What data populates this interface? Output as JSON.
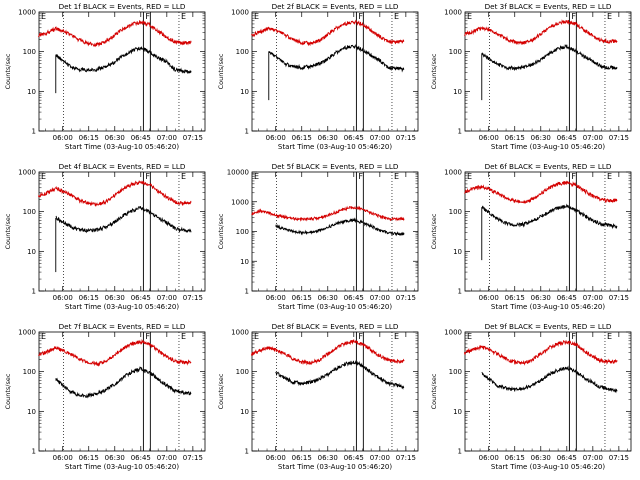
{
  "colors": {
    "events": "#000000",
    "lld": "#d40000",
    "axis": "#000000"
  },
  "chart_data": [
    {
      "type": "line",
      "title": "Det 1f BLACK = Events, RED = LLD",
      "xlabel": "Start Time (03-Aug-10 05:46:20)",
      "ylabel": "Counts/sec",
      "ylog": true,
      "ylim": [
        1,
        1000
      ],
      "yticks": [
        "1",
        "10",
        "100",
        "1000"
      ],
      "x_tick_labels": [
        "06:00",
        "06:15",
        "06:30",
        "06:45",
        "07:00",
        "07:15"
      ],
      "markers": [
        {
          "label": "F",
          "type": "solid"
        },
        {
          "label": "E",
          "type": "dotted"
        }
      ],
      "series": [
        {
          "name": "Events",
          "color": "#000000"
        },
        {
          "name": "LLD",
          "color": "#d40000"
        }
      ],
      "x": [
        "05:46",
        "05:51",
        "05:56",
        "06:00",
        "06:05",
        "06:10",
        "06:15",
        "06:20",
        "06:25",
        "06:30",
        "06:35",
        "06:40",
        "06:45",
        "06:50",
        "06:55",
        "07:00",
        "07:05",
        "07:10",
        "07:14"
      ],
      "events": [
        null,
        null,
        80,
        60,
        40,
        35,
        34,
        36,
        42,
        55,
        80,
        105,
        125,
        100,
        70,
        55,
        35,
        32,
        30
      ],
      "lld": [
        250,
        300,
        380,
        330,
        260,
        190,
        160,
        150,
        180,
        260,
        380,
        490,
        560,
        480,
        330,
        230,
        175,
        165,
        170
      ]
    },
    {
      "type": "line",
      "title": "Det 2f BLACK = Events, RED = LLD",
      "xlabel": "Start Time (03-Aug-10 05:46:20)",
      "ylabel": "Counts/sec",
      "ylog": true,
      "ylim": [
        1,
        1000
      ],
      "yticks": [
        "1",
        "10",
        "100",
        "1000"
      ],
      "x_tick_labels": [
        "06:00",
        "06:15",
        "06:30",
        "06:45",
        "07:00",
        "07:15"
      ],
      "markers": [
        {
          "label": "F",
          "type": "solid"
        },
        {
          "label": "E",
          "type": "dotted"
        }
      ],
      "series": [
        {
          "name": "Events",
          "color": "#000000"
        },
        {
          "name": "LLD",
          "color": "#d40000"
        }
      ],
      "x": [
        "05:46",
        "05:51",
        "05:56",
        "06:00",
        "06:05",
        "06:10",
        "06:15",
        "06:20",
        "06:25",
        "06:30",
        "06:35",
        "06:40",
        "06:45",
        "06:50",
        "06:55",
        "07:00",
        "07:05",
        "07:10",
        "07:14"
      ],
      "events": [
        null,
        null,
        100,
        75,
        50,
        42,
        40,
        42,
        50,
        65,
        95,
        125,
        140,
        110,
        80,
        60,
        40,
        38,
        35
      ],
      "lld": [
        260,
        310,
        390,
        340,
        270,
        200,
        170,
        160,
        190,
        270,
        390,
        500,
        570,
        490,
        340,
        240,
        185,
        175,
        180
      ]
    },
    {
      "type": "line",
      "title": "Det 3f BLACK = Events, RED = LLD",
      "xlabel": "Start Time (03-Aug-10 05:46:20)",
      "ylabel": "Counts/sec",
      "ylog": true,
      "ylim": [
        1,
        1000
      ],
      "yticks": [
        "1",
        "10",
        "100",
        "1000"
      ],
      "x_tick_labels": [
        "06:00",
        "06:15",
        "06:30",
        "06:45",
        "07:00",
        "07:15"
      ],
      "markers": [
        {
          "label": "F",
          "type": "solid"
        },
        {
          "label": "E",
          "type": "dotted"
        }
      ],
      "series": [
        {
          "name": "Events",
          "color": "#000000"
        },
        {
          "name": "LLD",
          "color": "#d40000"
        }
      ],
      "x": [
        "05:46",
        "05:51",
        "05:56",
        "06:00",
        "06:05",
        "06:10",
        "06:15",
        "06:20",
        "06:25",
        "06:30",
        "06:35",
        "06:40",
        "06:45",
        "06:50",
        "06:55",
        "07:00",
        "07:05",
        "07:10",
        "07:14"
      ],
      "events": [
        null,
        null,
        90,
        65,
        48,
        40,
        38,
        40,
        48,
        62,
        90,
        118,
        135,
        105,
        75,
        58,
        42,
        40,
        38
      ],
      "lld": [
        270,
        320,
        400,
        350,
        280,
        210,
        175,
        165,
        195,
        280,
        400,
        520,
        580,
        500,
        350,
        250,
        190,
        180,
        185
      ]
    },
    {
      "type": "line",
      "title": "Det 4f BLACK = Events, RED = LLD",
      "xlabel": "Start Time (03-Aug-10 05:46:20)",
      "ylabel": "Counts/sec",
      "ylog": true,
      "ylim": [
        1,
        1000
      ],
      "yticks": [
        "1",
        "10",
        "100",
        "1000"
      ],
      "x_tick_labels": [
        "06:00",
        "06:15",
        "06:30",
        "06:45",
        "07:00",
        "07:15"
      ],
      "markers": [
        {
          "label": "F",
          "type": "solid"
        },
        {
          "label": "E",
          "type": "dotted"
        }
      ],
      "series": [
        {
          "name": "Events",
          "color": "#000000"
        },
        {
          "name": "LLD",
          "color": "#d40000"
        }
      ],
      "x": [
        "05:46",
        "05:51",
        "05:56",
        "06:00",
        "06:05",
        "06:10",
        "06:15",
        "06:20",
        "06:25",
        "06:30",
        "06:35",
        "06:40",
        "06:45",
        "06:50",
        "06:55",
        "07:00",
        "07:05",
        "07:10",
        "07:14"
      ],
      "events": [
        null,
        null,
        70,
        55,
        40,
        35,
        33,
        35,
        42,
        55,
        80,
        105,
        125,
        100,
        70,
        52,
        38,
        34,
        32
      ],
      "lld": [
        250,
        300,
        380,
        330,
        260,
        190,
        160,
        150,
        180,
        260,
        380,
        490,
        560,
        480,
        330,
        230,
        175,
        165,
        170
      ]
    },
    {
      "type": "line",
      "title": "Det 5f BLACK = Events, RED = LLD",
      "xlabel": "Start Time (03-Aug-10 05:46:20)",
      "ylabel": "Counts/sec",
      "ylog": true,
      "ylim": [
        1,
        10000
      ],
      "yticks": [
        "1",
        "10",
        "100",
        "1000",
        "10000"
      ],
      "x_tick_labels": [
        "06:00",
        "06:15",
        "06:30",
        "06:45",
        "07:00",
        "07:15"
      ],
      "markers": [
        {
          "label": "F",
          "type": "solid"
        },
        {
          "label": "E",
          "type": "dotted"
        }
      ],
      "series": [
        {
          "name": "Events",
          "color": "#000000"
        },
        {
          "name": "LLD",
          "color": "#d40000"
        }
      ],
      "x": [
        "05:46",
        "05:51",
        "05:56",
        "06:00",
        "06:05",
        "06:10",
        "06:15",
        "06:20",
        "06:25",
        "06:30",
        "06:35",
        "06:40",
        "06:45",
        "06:50",
        "06:55",
        "07:00",
        "07:05",
        "07:10",
        "07:14"
      ],
      "events": [
        null,
        null,
        null,
        150,
        120,
        100,
        90,
        95,
        110,
        140,
        180,
        220,
        240,
        200,
        150,
        110,
        90,
        85,
        80
      ],
      "lld": [
        400,
        500,
        420,
        350,
        300,
        270,
        260,
        265,
        290,
        350,
        450,
        580,
        650,
        560,
        420,
        320,
        270,
        260,
        270
      ]
    },
    {
      "type": "line",
      "title": "Det 6f BLACK = Events, RED = LLD",
      "xlabel": "Start Time (03-Aug-10 05:46:20)",
      "ylabel": "Counts/sec",
      "ylog": true,
      "ylim": [
        1,
        1000
      ],
      "yticks": [
        "1",
        "10",
        "100",
        "1000"
      ],
      "x_tick_labels": [
        "06:00",
        "06:15",
        "06:30",
        "06:45",
        "07:00",
        "07:15"
      ],
      "markers": [
        {
          "label": "F",
          "type": "solid"
        },
        {
          "label": "E",
          "type": "dotted"
        }
      ],
      "series": [
        {
          "name": "Events",
          "color": "#000000"
        },
        {
          "name": "LLD",
          "color": "#d40000"
        }
      ],
      "x": [
        "05:46",
        "05:51",
        "05:56",
        "06:00",
        "06:05",
        "06:10",
        "06:15",
        "06:20",
        "06:25",
        "06:30",
        "06:35",
        "06:40",
        "06:45",
        "06:50",
        "06:55",
        "07:00",
        "07:05",
        "07:10",
        "07:14"
      ],
      "events": [
        null,
        null,
        130,
        95,
        65,
        50,
        45,
        48,
        58,
        75,
        100,
        125,
        135,
        110,
        80,
        60,
        48,
        45,
        42
      ],
      "lld": [
        320,
        380,
        430,
        370,
        290,
        220,
        185,
        175,
        205,
        290,
        400,
        500,
        540,
        470,
        340,
        250,
        200,
        190,
        195
      ]
    },
    {
      "type": "line",
      "title": "Det 7f BLACK = Events, RED = LLD",
      "xlabel": "Start Time (03-Aug-10 05:46:20)",
      "ylabel": "Counts/sec",
      "ylog": true,
      "ylim": [
        1,
        1000
      ],
      "yticks": [
        "1",
        "10",
        "100",
        "1000"
      ],
      "x_tick_labels": [
        "06:00",
        "06:15",
        "06:30",
        "06:45",
        "07:00",
        "07:15"
      ],
      "markers": [
        {
          "label": "F",
          "type": "solid"
        },
        {
          "label": "E",
          "type": "dotted"
        }
      ],
      "series": [
        {
          "name": "Events",
          "color": "#000000"
        },
        {
          "name": "LLD",
          "color": "#d40000"
        }
      ],
      "x": [
        "05:46",
        "05:51",
        "05:56",
        "06:00",
        "06:05",
        "06:10",
        "06:15",
        "06:20",
        "06:25",
        "06:30",
        "06:35",
        "06:40",
        "06:45",
        "06:50",
        "06:55",
        "07:00",
        "07:05",
        "07:10",
        "07:14"
      ],
      "events": [
        null,
        null,
        65,
        45,
        30,
        25,
        25,
        28,
        35,
        48,
        72,
        100,
        120,
        95,
        65,
        45,
        32,
        30,
        28
      ],
      "lld": [
        260,
        320,
        400,
        340,
        270,
        200,
        165,
        155,
        185,
        270,
        390,
        500,
        570,
        490,
        340,
        240,
        180,
        170,
        175
      ]
    },
    {
      "type": "line",
      "title": "Det 8f BLACK = Events, RED = LLD",
      "xlabel": "Start Time (03-Aug-10 05:46:20)",
      "ylabel": "Counts/sec",
      "ylog": true,
      "ylim": [
        1,
        1000
      ],
      "yticks": [
        "1",
        "10",
        "100",
        "1000"
      ],
      "x_tick_labels": [
        "06:00",
        "06:15",
        "06:30",
        "06:45",
        "07:00",
        "07:15"
      ],
      "markers": [
        {
          "label": "F",
          "type": "solid"
        },
        {
          "label": "E",
          "type": "dotted"
        }
      ],
      "series": [
        {
          "name": "Events",
          "color": "#000000"
        },
        {
          "name": "LLD",
          "color": "#d40000"
        }
      ],
      "x": [
        "05:46",
        "05:51",
        "05:56",
        "06:00",
        "06:05",
        "06:10",
        "06:15",
        "06:20",
        "06:25",
        "06:30",
        "06:35",
        "06:40",
        "06:45",
        "06:50",
        "06:55",
        "07:00",
        "07:05",
        "07:10",
        "07:14"
      ],
      "events": [
        null,
        null,
        null,
        95,
        70,
        55,
        50,
        55,
        65,
        85,
        120,
        155,
        175,
        140,
        95,
        70,
        50,
        45,
        40
      ],
      "lld": [
        280,
        340,
        400,
        350,
        280,
        210,
        175,
        165,
        195,
        280,
        400,
        510,
        580,
        500,
        350,
        250,
        190,
        180,
        185
      ]
    },
    {
      "type": "line",
      "title": "Det 9f BLACK = Events, RED = LLD",
      "xlabel": "Start Time (03-Aug-10 05:46:20)",
      "ylabel": "Counts/sec",
      "ylog": true,
      "ylim": [
        1,
        1000
      ],
      "yticks": [
        "1",
        "10",
        "100",
        "1000"
      ],
      "x_tick_labels": [
        "06:00",
        "06:15",
        "06:30",
        "06:45",
        "07:00",
        "07:15"
      ],
      "markers": [
        {
          "label": "F",
          "type": "solid"
        },
        {
          "label": "E",
          "type": "dotted"
        }
      ],
      "series": [
        {
          "name": "Events",
          "color": "#000000"
        },
        {
          "name": "LLD",
          "color": "#d40000"
        }
      ],
      "x": [
        "05:46",
        "05:51",
        "05:56",
        "06:00",
        "06:05",
        "06:10",
        "06:15",
        "06:20",
        "06:25",
        "06:30",
        "06:35",
        "06:40",
        "06:45",
        "06:50",
        "06:55",
        "07:00",
        "07:05",
        "07:10",
        "07:14"
      ],
      "events": [
        null,
        null,
        90,
        65,
        45,
        38,
        35,
        38,
        45,
        60,
        85,
        110,
        125,
        100,
        70,
        52,
        40,
        36,
        34
      ],
      "lld": [
        300,
        360,
        420,
        360,
        280,
        210,
        175,
        165,
        195,
        280,
        400,
        510,
        570,
        490,
        340,
        240,
        185,
        175,
        180
      ]
    }
  ]
}
